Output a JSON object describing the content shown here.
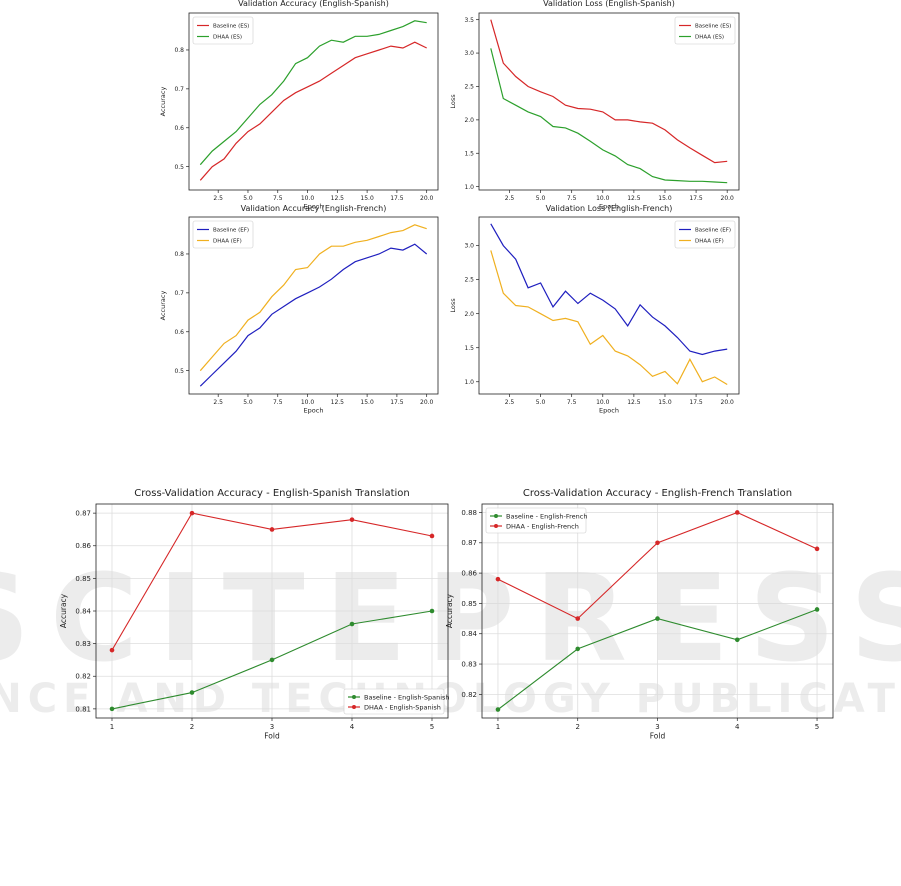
{
  "watermark": {
    "line1": "SCITEPRESS",
    "line2": "SCIENCE AND TECHNOLOGY PUBLICATIONS"
  },
  "chart_data": [
    {
      "type": "line",
      "title": "Validation Accuracy (English-Spanish)",
      "xlabel": "Epoch",
      "ylabel": "Accuracy",
      "xlim": [
        0.05,
        20.95
      ],
      "ylim": [
        0.44,
        0.895
      ],
      "xticks": [
        2.5,
        5.0,
        7.5,
        10.0,
        12.5,
        15.0,
        17.5,
        20.0
      ],
      "xtick_labels": [
        "2.5",
        "5.0",
        "7.5",
        "10.0",
        "12.5",
        "15.0",
        "17.5",
        "20.0"
      ],
      "yticks": [
        0.5,
        0.6,
        0.7,
        0.8
      ],
      "ytick_labels": [
        "0.5",
        "0.6",
        "0.7",
        "0.8"
      ],
      "legend": "top-left",
      "grid": false,
      "x": [
        1,
        2,
        3,
        4,
        5,
        6,
        7,
        8,
        9,
        10,
        11,
        12,
        13,
        14,
        15,
        16,
        17,
        18,
        19,
        20
      ],
      "series": [
        {
          "name": "Baseline (ES)",
          "color": "#d62728",
          "values": [
            0.465,
            0.5,
            0.52,
            0.56,
            0.59,
            0.61,
            0.64,
            0.67,
            0.69,
            0.705,
            0.72,
            0.74,
            0.76,
            0.78,
            0.79,
            0.8,
            0.81,
            0.805,
            0.82,
            0.805
          ]
        },
        {
          "name": "DHAA (ES)",
          "color": "#2ca02c",
          "values": [
            0.505,
            0.54,
            0.565,
            0.59,
            0.625,
            0.66,
            0.685,
            0.72,
            0.765,
            0.78,
            0.81,
            0.825,
            0.82,
            0.835,
            0.835,
            0.84,
            0.85,
            0.86,
            0.875,
            0.87
          ]
        }
      ]
    },
    {
      "type": "line",
      "title": "Validation Loss (English-Spanish)",
      "xlabel": "Epoch",
      "ylabel": "Loss",
      "xlim": [
        0.05,
        20.95
      ],
      "ylim": [
        0.95,
        3.6
      ],
      "xticks": [
        2.5,
        5.0,
        7.5,
        10.0,
        12.5,
        15.0,
        17.5,
        20.0
      ],
      "xtick_labels": [
        "2.5",
        "5.0",
        "7.5",
        "10.0",
        "12.5",
        "15.0",
        "17.5",
        "20.0"
      ],
      "yticks": [
        1.0,
        1.5,
        2.0,
        2.5,
        3.0,
        3.5
      ],
      "ytick_labels": [
        "1.0",
        "1.5",
        "2.0",
        "2.5",
        "3.0",
        "3.5"
      ],
      "legend": "top-right",
      "grid": false,
      "x": [
        1,
        2,
        3,
        4,
        5,
        6,
        7,
        8,
        9,
        10,
        11,
        12,
        13,
        14,
        15,
        16,
        17,
        18,
        19,
        20
      ],
      "series": [
        {
          "name": "Baseline (ES)",
          "color": "#d62728",
          "values": [
            3.5,
            2.85,
            2.65,
            2.5,
            2.42,
            2.35,
            2.22,
            2.17,
            2.16,
            2.12,
            2.0,
            2.0,
            1.97,
            1.95,
            1.85,
            1.7,
            1.58,
            1.47,
            1.36,
            1.38
          ]
        },
        {
          "name": "DHAA (ES)",
          "color": "#2ca02c",
          "values": [
            3.07,
            2.32,
            2.22,
            2.12,
            2.05,
            1.9,
            1.88,
            1.8,
            1.68,
            1.55,
            1.46,
            1.33,
            1.27,
            1.15,
            1.1,
            1.09,
            1.08,
            1.08,
            1.07,
            1.06
          ]
        }
      ]
    },
    {
      "type": "line",
      "title": "Validation Accuracy (English-French)",
      "xlabel": "Epoch",
      "ylabel": "Accuracy",
      "xlim": [
        0.05,
        20.95
      ],
      "ylim": [
        0.44,
        0.895
      ],
      "xticks": [
        2.5,
        5.0,
        7.5,
        10.0,
        12.5,
        15.0,
        17.5,
        20.0
      ],
      "xtick_labels": [
        "2.5",
        "5.0",
        "7.5",
        "10.0",
        "12.5",
        "15.0",
        "17.5",
        "20.0"
      ],
      "yticks": [
        0.5,
        0.6,
        0.7,
        0.8
      ],
      "ytick_labels": [
        "0.5",
        "0.6",
        "0.7",
        "0.8"
      ],
      "legend": "top-left",
      "grid": false,
      "x": [
        1,
        2,
        3,
        4,
        5,
        6,
        7,
        8,
        9,
        10,
        11,
        12,
        13,
        14,
        15,
        16,
        17,
        18,
        19,
        20
      ],
      "series": [
        {
          "name": "Baseline (EF)",
          "color": "#1f1fbf",
          "values": [
            0.46,
            0.49,
            0.52,
            0.55,
            0.59,
            0.61,
            0.645,
            0.665,
            0.685,
            0.7,
            0.715,
            0.735,
            0.76,
            0.78,
            0.79,
            0.8,
            0.815,
            0.81,
            0.825,
            0.8
          ]
        },
        {
          "name": "DHAA (EF)",
          "color": "#f0b020",
          "values": [
            0.5,
            0.535,
            0.57,
            0.59,
            0.63,
            0.65,
            0.69,
            0.72,
            0.76,
            0.765,
            0.8,
            0.82,
            0.82,
            0.83,
            0.835,
            0.845,
            0.855,
            0.86,
            0.875,
            0.865
          ]
        }
      ]
    },
    {
      "type": "line",
      "title": "Validation Loss (English-French)",
      "xlabel": "Epoch",
      "ylabel": "Loss",
      "xlim": [
        0.05,
        20.95
      ],
      "ylim": [
        0.82,
        3.42
      ],
      "xticks": [
        2.5,
        5.0,
        7.5,
        10.0,
        12.5,
        15.0,
        17.5,
        20.0
      ],
      "xtick_labels": [
        "2.5",
        "5.0",
        "7.5",
        "10.0",
        "12.5",
        "15.0",
        "17.5",
        "20.0"
      ],
      "yticks": [
        1.0,
        1.5,
        2.0,
        2.5,
        3.0
      ],
      "ytick_labels": [
        "1.0",
        "1.5",
        "2.0",
        "2.5",
        "3.0"
      ],
      "legend": "top-right",
      "grid": false,
      "x": [
        1,
        2,
        3,
        4,
        5,
        6,
        7,
        8,
        9,
        10,
        11,
        12,
        13,
        14,
        15,
        16,
        17,
        18,
        19,
        20
      ],
      "series": [
        {
          "name": "Baseline (EF)",
          "color": "#1f1fbf",
          "values": [
            3.32,
            3.0,
            2.8,
            2.38,
            2.45,
            2.1,
            2.33,
            2.15,
            2.3,
            2.2,
            2.07,
            1.82,
            2.13,
            1.95,
            1.82,
            1.65,
            1.45,
            1.4,
            1.45,
            1.48
          ]
        },
        {
          "name": "DHAA (EF)",
          "color": "#f0b020",
          "values": [
            2.93,
            2.3,
            2.12,
            2.1,
            2.0,
            1.9,
            1.93,
            1.88,
            1.55,
            1.68,
            1.45,
            1.38,
            1.25,
            1.08,
            1.15,
            0.97,
            1.33,
            1.0,
            1.07,
            0.96
          ]
        }
      ]
    },
    {
      "type": "line",
      "title": "Cross-Validation Accuracy - English-Spanish Translation",
      "xlabel": "Fold",
      "ylabel": "Accuracy",
      "xlim": [
        0.8,
        5.2
      ],
      "ylim": [
        0.8072,
        0.8728
      ],
      "xticks": [
        1,
        2,
        3,
        4,
        5
      ],
      "xtick_labels": [
        "1",
        "2",
        "3",
        "4",
        "5"
      ],
      "yticks": [
        0.81,
        0.82,
        0.83,
        0.84,
        0.85,
        0.86,
        0.87
      ],
      "ytick_labels": [
        "0.81",
        "0.82",
        "0.83",
        "0.84",
        "0.85",
        "0.86",
        "0.87"
      ],
      "legend": "bottom-right",
      "grid": true,
      "markers": true,
      "x": [
        1,
        2,
        3,
        4,
        5
      ],
      "series": [
        {
          "name": "Baseline - English-Spanish",
          "color": "#2e8b2e",
          "values": [
            0.81,
            0.815,
            0.825,
            0.836,
            0.84
          ]
        },
        {
          "name": "DHAA - English-Spanish",
          "color": "#d62728",
          "values": [
            0.828,
            0.87,
            0.865,
            0.868,
            0.863
          ]
        }
      ]
    },
    {
      "type": "line",
      "title": "Cross-Validation Accuracy - English-French Translation",
      "xlabel": "Fold",
      "ylabel": "Accuracy",
      "xlim": [
        0.8,
        5.2
      ],
      "ylim": [
        0.8122,
        0.8828
      ],
      "xticks": [
        1,
        2,
        3,
        4,
        5
      ],
      "xtick_labels": [
        "1",
        "2",
        "3",
        "4",
        "5"
      ],
      "yticks": [
        0.82,
        0.83,
        0.84,
        0.85,
        0.86,
        0.87,
        0.88
      ],
      "ytick_labels": [
        "0.82",
        "0.83",
        "0.84",
        "0.85",
        "0.86",
        "0.87",
        "0.88"
      ],
      "legend": "top-left",
      "grid": true,
      "markers": true,
      "x": [
        1,
        2,
        3,
        4,
        5
      ],
      "series": [
        {
          "name": "Baseline - English-French",
          "color": "#2e8b2e",
          "values": [
            0.815,
            0.835,
            0.845,
            0.838,
            0.848
          ]
        },
        {
          "name": "DHAA - English-French",
          "color": "#d62728",
          "values": [
            0.858,
            0.845,
            0.87,
            0.88,
            0.868
          ]
        }
      ]
    }
  ]
}
